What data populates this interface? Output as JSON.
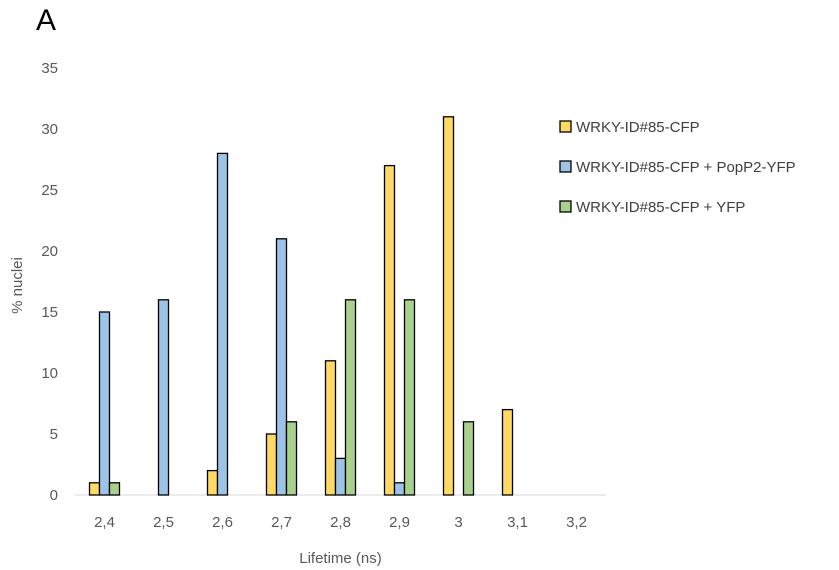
{
  "panel_label": "A",
  "chart_data": {
    "type": "bar",
    "title": "",
    "xlabel": "Lifetime (ns)",
    "ylabel": "% nuclei",
    "categories": [
      "2,4",
      "2,5",
      "2,6",
      "2,7",
      "2,8",
      "2,9",
      "3",
      "3,1",
      "3,2"
    ],
    "ylim": [
      0,
      35
    ],
    "yticks": [
      0,
      5,
      10,
      15,
      20,
      25,
      30,
      35
    ],
    "grid": false,
    "legend_position": "right",
    "series": [
      {
        "name": "WRKY-ID#85-CFP",
        "color": "#FFD966",
        "values": [
          1,
          0,
          2,
          5,
          11,
          27,
          31,
          7,
          0
        ]
      },
      {
        "name": "WRKY-ID#85-CFP + PopP2-YFP",
        "color": "#9DC3E6",
        "values": [
          15,
          16,
          28,
          21,
          3,
          1,
          0,
          0,
          0
        ]
      },
      {
        "name": "WRKY-ID#85-CFP + YFP",
        "color": "#A9D18E",
        "values": [
          1,
          0,
          0,
          6,
          16,
          16,
          6,
          0,
          0
        ]
      }
    ]
  }
}
